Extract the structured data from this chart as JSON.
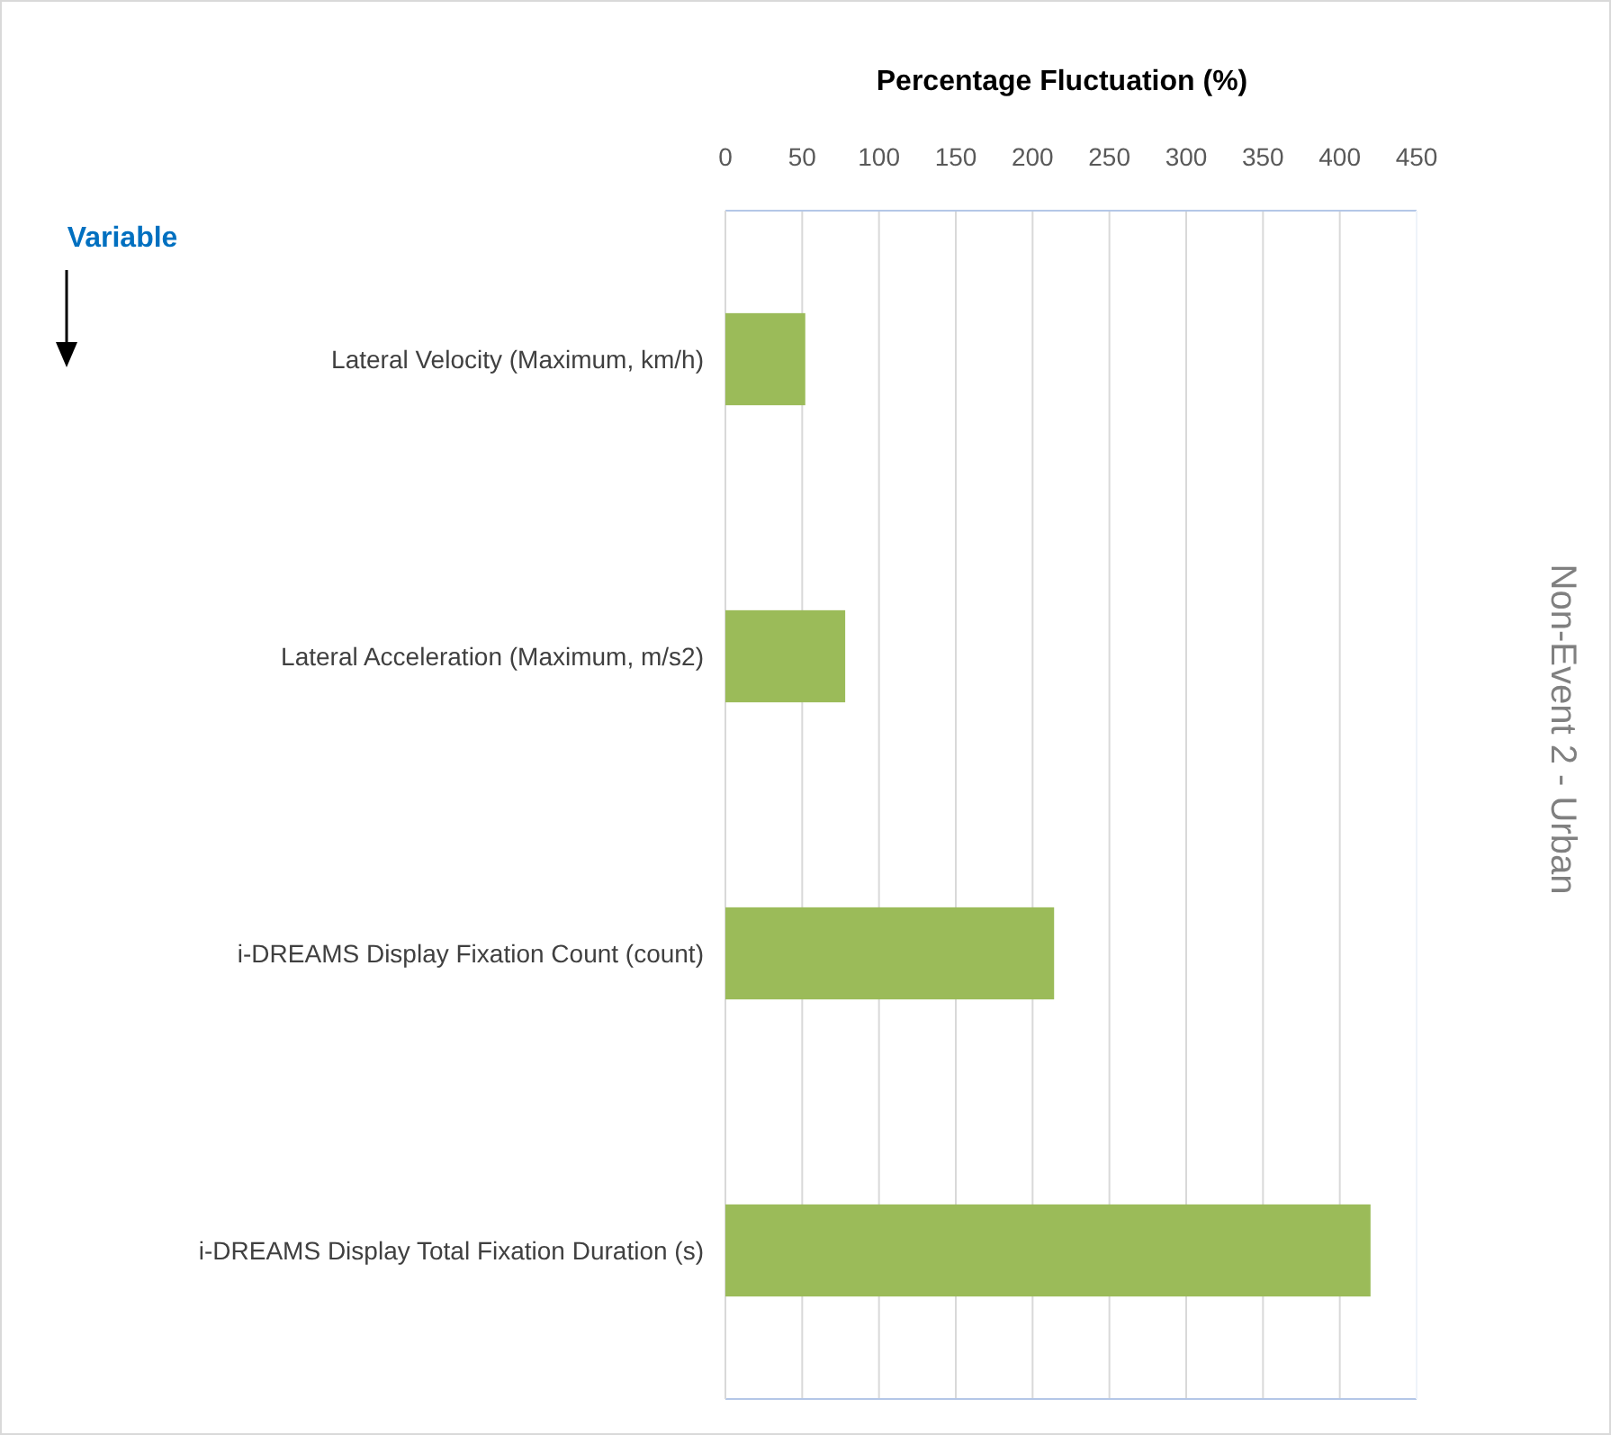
{
  "chart_data": {
    "type": "bar",
    "orientation": "horizontal",
    "xlabel": "Percentage Fluctuation (%)",
    "ylabel": "Variable",
    "categories": [
      "Lateral Velocity (Maximum, km/h)",
      "Lateral Acceleration (Maximum, m/s2)",
      "i-DREAMS Display Fixation Count (count)",
      "i-DREAMS Display Total Fixation Duration (s)"
    ],
    "values": [
      52,
      78,
      214,
      420
    ],
    "color": "#9bbb59",
    "xlim": [
      0,
      450
    ],
    "xticks": [
      0,
      50,
      100,
      150,
      200,
      250,
      300,
      350,
      400,
      450
    ],
    "grid": "x",
    "annotations": [
      "Non-Event 2 - Urban"
    ]
  }
}
